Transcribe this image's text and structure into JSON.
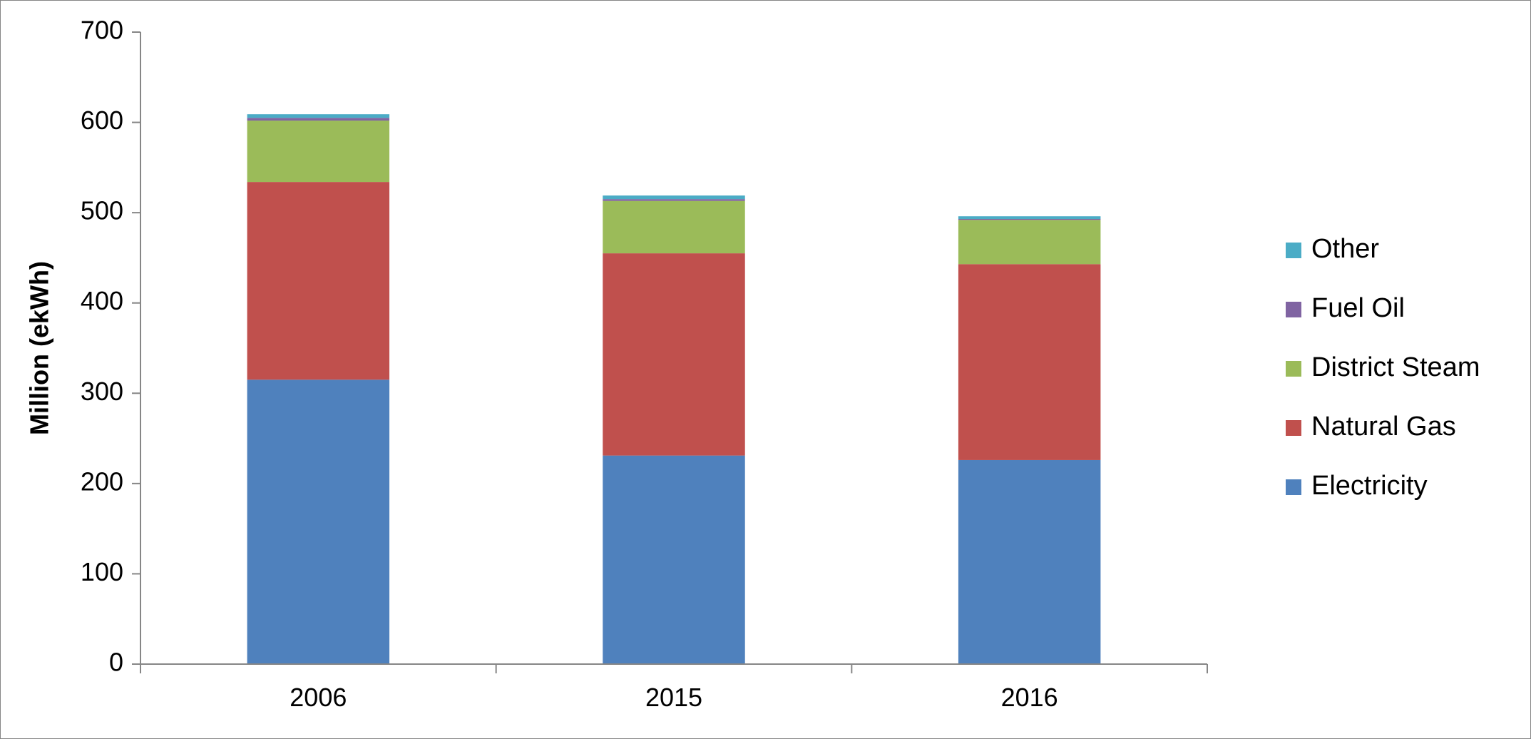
{
  "chart_data": {
    "type": "bar",
    "stacked": true,
    "categories": [
      "2006",
      "2015",
      "2016"
    ],
    "series": [
      {
        "name": "Electricity",
        "color": "#4F81BD",
        "values": [
          315,
          231,
          226
        ]
      },
      {
        "name": "Natural Gas",
        "color": "#C0504D",
        "values": [
          219,
          224,
          217
        ]
      },
      {
        "name": "District Steam",
        "color": "#9BBB59",
        "values": [
          68,
          58,
          49
        ]
      },
      {
        "name": "Fuel Oil",
        "color": "#8064A2",
        "values": [
          3,
          2,
          1
        ]
      },
      {
        "name": "Other",
        "color": "#4BACC6",
        "values": [
          4,
          4,
          3
        ]
      }
    ],
    "ylabel": "Million (ekWh)",
    "xlabel": "",
    "title": "",
    "ylim": [
      0,
      700
    ],
    "yticks": [
      "0",
      "100",
      "200",
      "300",
      "400",
      "500",
      "600",
      "700"
    ],
    "grid": false,
    "legend_position": "right"
  }
}
